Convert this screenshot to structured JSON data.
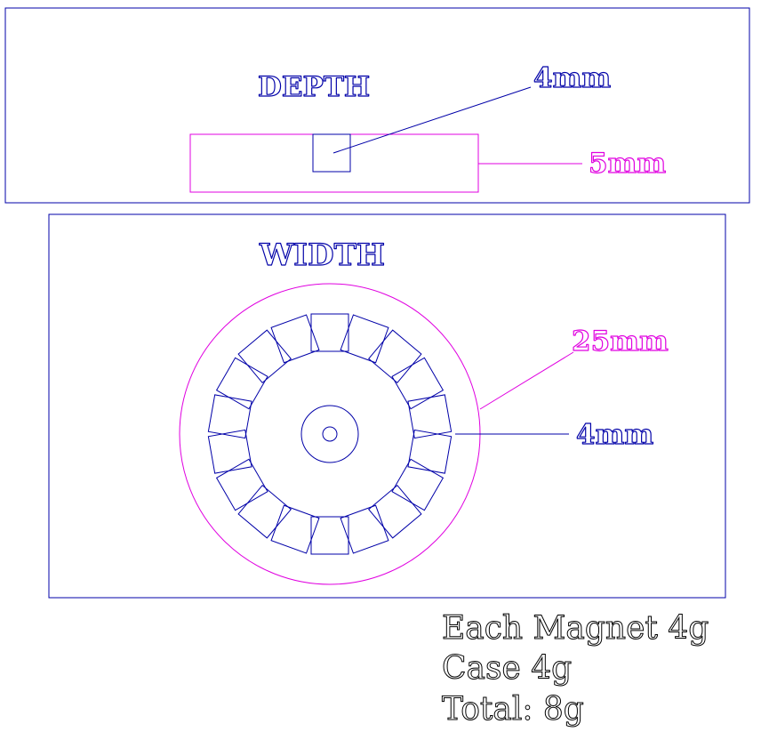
{
  "depth_view": {
    "title": "DEPTH",
    "magnet_label": "4mm",
    "case_label": "5mm"
  },
  "width_view": {
    "title": "WIDTH",
    "case_label": "25mm",
    "magnet_label": "4mm",
    "magnet_count": 18
  },
  "notes": {
    "line1": "Each Magnet 4g",
    "line2": "Case 4g",
    "line3": "Total: 8g"
  },
  "colors": {
    "frame": "#0000a8",
    "magnet": "#0000a8",
    "case": "#e000e0",
    "notes": "#000000"
  }
}
